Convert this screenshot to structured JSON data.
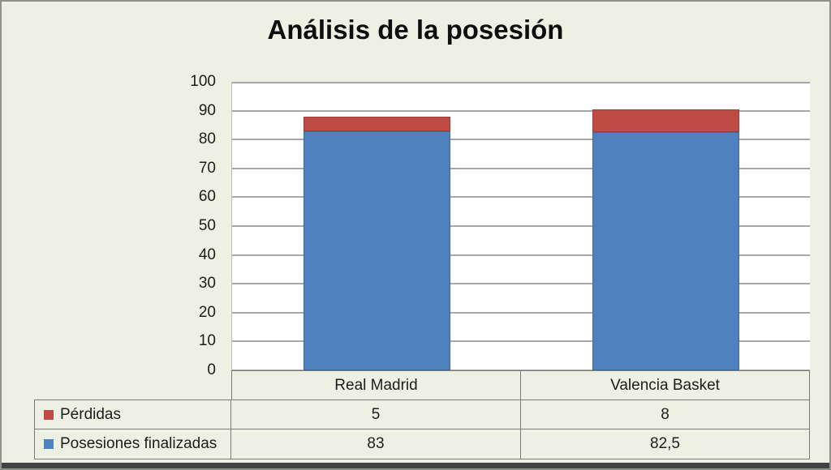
{
  "chart_data": {
    "type": "bar",
    "stacked": true,
    "title": "Análisis de la posesión",
    "categories": [
      "Real Madrid",
      "Valencia Basket"
    ],
    "series": [
      {
        "name": "Posesiones finalizadas",
        "color": "#4e81bd",
        "values": [
          83,
          82.5
        ]
      },
      {
        "name": "Pérdidas",
        "color": "#bf4b47",
        "values": [
          5,
          8
        ]
      }
    ],
    "xlabel": "",
    "ylabel": "",
    "ylim": [
      0,
      100
    ],
    "yticks": [
      0,
      10,
      20,
      30,
      40,
      50,
      60,
      70,
      80,
      90,
      100
    ],
    "grid": "horizontal-major",
    "gridline_color": "#a7a7a7",
    "plot_bg": "#ffffff",
    "page_bg": "#edf0e2",
    "legend_position": "table-left-column"
  },
  "data_table": {
    "rows": [
      {
        "label": "Pérdidas",
        "marker_color": "#bf4b47",
        "values": [
          "5",
          "8"
        ]
      },
      {
        "label": "Posesiones finalizadas",
        "marker_color": "#4e81bd",
        "values": [
          "83",
          "82,5"
        ]
      }
    ]
  }
}
